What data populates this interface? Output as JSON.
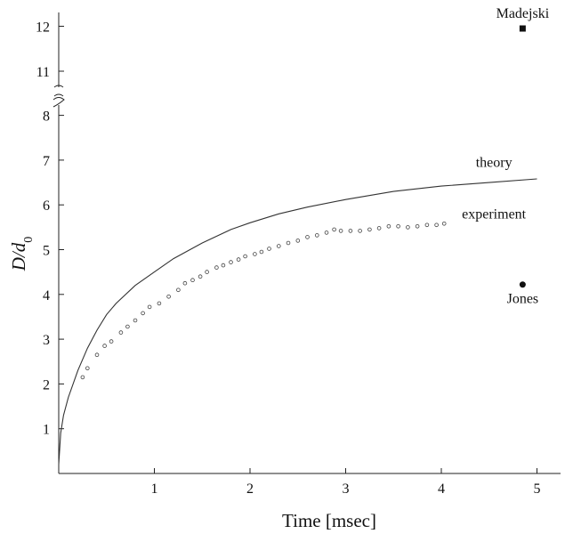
{
  "chart_data": {
    "type": "line",
    "xlabel": "Time [msec]",
    "ylabel": {
      "main": "D/d",
      "sub": "0"
    },
    "x_ticks": [
      1,
      2,
      3,
      4,
      5
    ],
    "y_ticks_lower": [
      1,
      2,
      3,
      4,
      5,
      6,
      7,
      8
    ],
    "y_ticks_upper": [
      11,
      12
    ],
    "y_axis_break": "between 8 and 11",
    "xlim": [
      0,
      5.2
    ],
    "ylim": [
      0,
      12.3
    ],
    "grid": false,
    "series": [
      {
        "name": "theory",
        "style": "solid-line",
        "x": [
          0,
          0.02,
          0.05,
          0.1,
          0.2,
          0.3,
          0.4,
          0.5,
          0.6,
          0.8,
          1.0,
          1.2,
          1.5,
          1.8,
          2.0,
          2.3,
          2.6,
          3.0,
          3.5,
          4.0,
          4.5,
          5.0
        ],
        "y": [
          0.2,
          0.9,
          1.3,
          1.7,
          2.3,
          2.8,
          3.2,
          3.55,
          3.8,
          4.2,
          4.5,
          4.8,
          5.15,
          5.45,
          5.6,
          5.8,
          5.95,
          6.12,
          6.3,
          6.42,
          6.5,
          6.58
        ]
      },
      {
        "name": "experiment",
        "style": "open-circles",
        "x": [
          0.25,
          0.3,
          0.4,
          0.48,
          0.55,
          0.65,
          0.72,
          0.8,
          0.88,
          0.95,
          1.05,
          1.15,
          1.25,
          1.32,
          1.4,
          1.48,
          1.55,
          1.65,
          1.72,
          1.8,
          1.88,
          1.95,
          2.05,
          2.12,
          2.2,
          2.3,
          2.4,
          2.5,
          2.6,
          2.7,
          2.8,
          2.88,
          2.95,
          3.05,
          3.15,
          3.25,
          3.35,
          3.45,
          3.55,
          3.65,
          3.75,
          3.85,
          3.95,
          4.03
        ],
        "y": [
          2.15,
          2.35,
          2.65,
          2.85,
          2.95,
          3.15,
          3.28,
          3.42,
          3.58,
          3.72,
          3.8,
          3.95,
          4.1,
          4.25,
          4.32,
          4.4,
          4.5,
          4.6,
          4.65,
          4.72,
          4.78,
          4.85,
          4.9,
          4.95,
          5.02,
          5.08,
          5.15,
          5.2,
          5.28,
          5.32,
          5.38,
          5.45,
          5.42,
          5.42,
          5.42,
          5.45,
          5.48,
          5.52,
          5.52,
          5.5,
          5.52,
          5.55,
          5.55,
          5.58
        ]
      }
    ],
    "annotations": [
      {
        "label": "theory",
        "x": 4.55,
        "y": 6.85
      },
      {
        "label": "experiment",
        "x": 4.55,
        "y": 5.7
      },
      {
        "label": "Madejski",
        "x": 4.85,
        "y": 11.95,
        "marker": "filled-square"
      },
      {
        "label": "Jones",
        "x": 4.85,
        "y": 4.22,
        "marker": "filled-circle"
      }
    ]
  }
}
